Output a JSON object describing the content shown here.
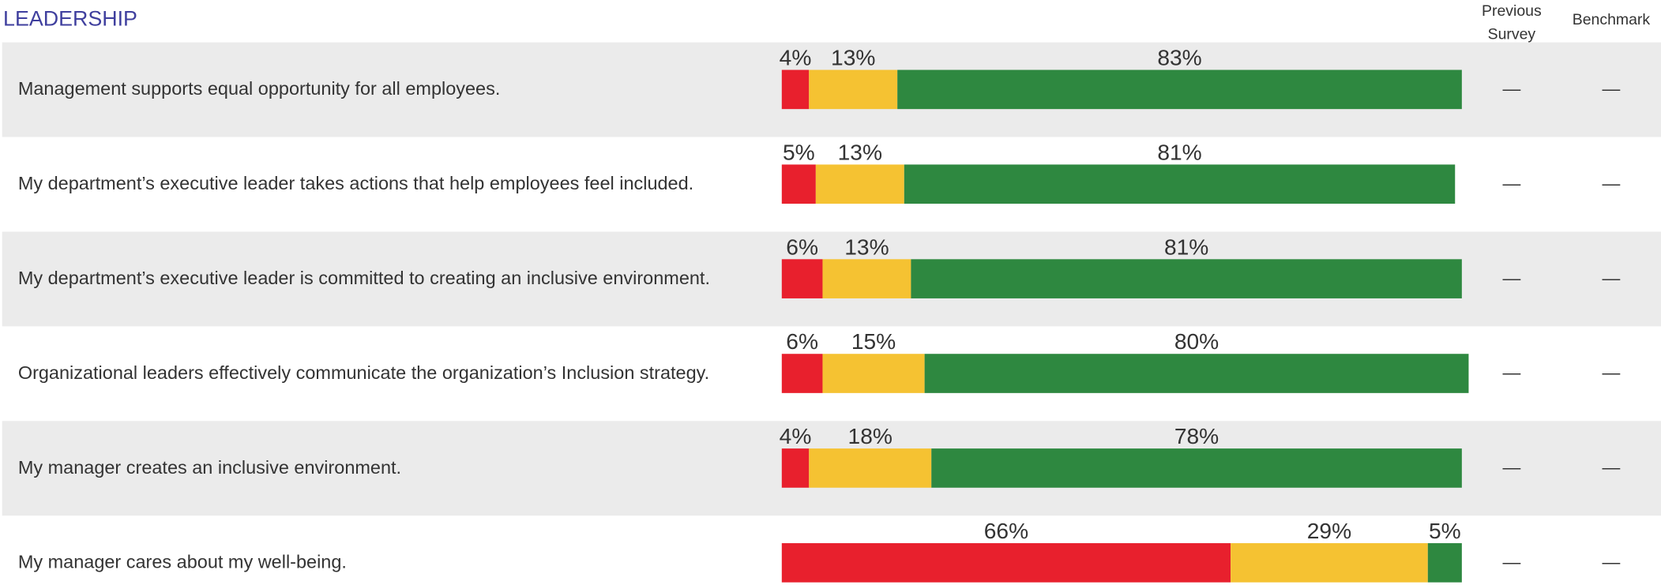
{
  "chart_data": {
    "type": "bar",
    "orientation": "horizontal",
    "stacked": true,
    "title": "LEADERSHIP",
    "categories": [
      "Management supports equal opportunity for all employees.",
      "My department’s executive leader takes actions that help employees feel included.",
      "My department’s executive leader is committed to creating an inclusive environment.",
      "Organizational leaders effectively communicate the organization’s Inclusion strategy.",
      "My manager creates an inclusive environment.",
      "My manager cares about my well-being."
    ],
    "xlim": [
      0,
      100
    ],
    "series": [
      {
        "color": "#e8202d",
        "values": [
          4,
          5,
          6,
          6,
          4,
          66
        ],
        "value_labels": [
          "4%",
          "5%",
          "6%",
          "6%",
          "4%",
          "66%"
        ]
      },
      {
        "color": "#f5c232",
        "values": [
          13,
          13,
          13,
          15,
          18,
          29
        ],
        "value_labels": [
          "13%",
          "13%",
          "13%",
          "15%",
          "18%",
          "29%"
        ]
      },
      {
        "color": "#2e8840",
        "values": [
          83,
          81,
          81,
          80,
          78,
          5
        ],
        "value_labels": [
          "83%",
          "81%",
          "81%",
          "80%",
          "78%",
          "5%"
        ]
      }
    ],
    "extra_columns": [
      {
        "label": "Previous Survey",
        "values": [
          "—",
          "—",
          "—",
          "—",
          "—",
          "—"
        ]
      },
      {
        "label": "Benchmark",
        "values": [
          "—",
          "—",
          "—",
          "—",
          "—",
          "—"
        ]
      }
    ]
  }
}
